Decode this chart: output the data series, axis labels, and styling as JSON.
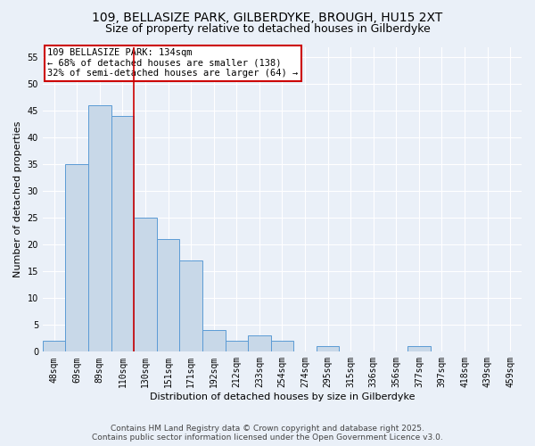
{
  "title_line1": "109, BELLASIZE PARK, GILBERDYKE, BROUGH, HU15 2XT",
  "title_line2": "Size of property relative to detached houses in Gilberdyke",
  "xlabel": "Distribution of detached houses by size in Gilberdyke",
  "ylabel": "Number of detached properties",
  "categories": [
    "48sqm",
    "69sqm",
    "89sqm",
    "110sqm",
    "130sqm",
    "151sqm",
    "171sqm",
    "192sqm",
    "212sqm",
    "233sqm",
    "254sqm",
    "274sqm",
    "295sqm",
    "315sqm",
    "336sqm",
    "356sqm",
    "377sqm",
    "397sqm",
    "418sqm",
    "439sqm",
    "459sqm"
  ],
  "values": [
    2,
    35,
    46,
    44,
    25,
    21,
    17,
    4,
    2,
    3,
    2,
    0,
    1,
    0,
    0,
    0,
    1,
    0,
    0,
    0,
    0
  ],
  "bar_color": "#c8d8e8",
  "bar_edge_color": "#5b9bd5",
  "red_line_index": 3.5,
  "red_line_color": "#cc0000",
  "annotation_text": "109 BELLASIZE PARK: 134sqm\n← 68% of detached houses are smaller (138)\n32% of semi-detached houses are larger (64) →",
  "annotation_box_color": "white",
  "annotation_box_edge": "#cc0000",
  "ylim": [
    0,
    57
  ],
  "yticks": [
    0,
    5,
    10,
    15,
    20,
    25,
    30,
    35,
    40,
    45,
    50,
    55
  ],
  "bg_color": "#eaf0f8",
  "grid_color": "white",
  "footer_line1": "Contains HM Land Registry data © Crown copyright and database right 2025.",
  "footer_line2": "Contains public sector information licensed under the Open Government Licence v3.0.",
  "title_fontsize": 10,
  "subtitle_fontsize": 9,
  "axis_label_fontsize": 8,
  "tick_fontsize": 7,
  "annotation_fontsize": 7.5,
  "footer_fontsize": 6.5
}
